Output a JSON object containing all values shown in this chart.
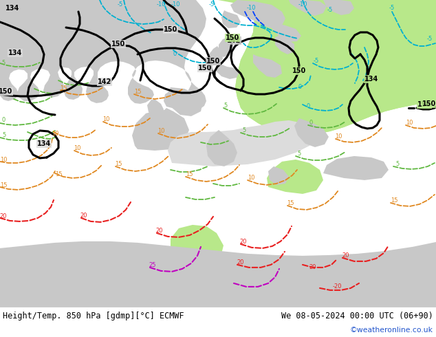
{
  "title_left": "Height/Temp. 850 hPa [gdmp][°C] ECMWF",
  "title_right": "We 08-05-2024 00:00 UTC (06+90)",
  "copyright": "©weatheronline.co.uk",
  "bg_color": "#dcdcdc",
  "land_color": "#c8c8c8",
  "sea_color": "#dcdcdc",
  "green_color": "#b8e88a",
  "contour_black": "#000000",
  "contour_cyan": "#00b0d0",
  "contour_green": "#60b840",
  "contour_orange": "#e08820",
  "contour_red": "#e82020",
  "contour_magenta": "#c000c0",
  "contour_blue": "#0040ff",
  "lw_black": 2.2,
  "lw_thin": 1.3,
  "figsize": [
    6.34,
    4.9
  ],
  "dpi": 100
}
